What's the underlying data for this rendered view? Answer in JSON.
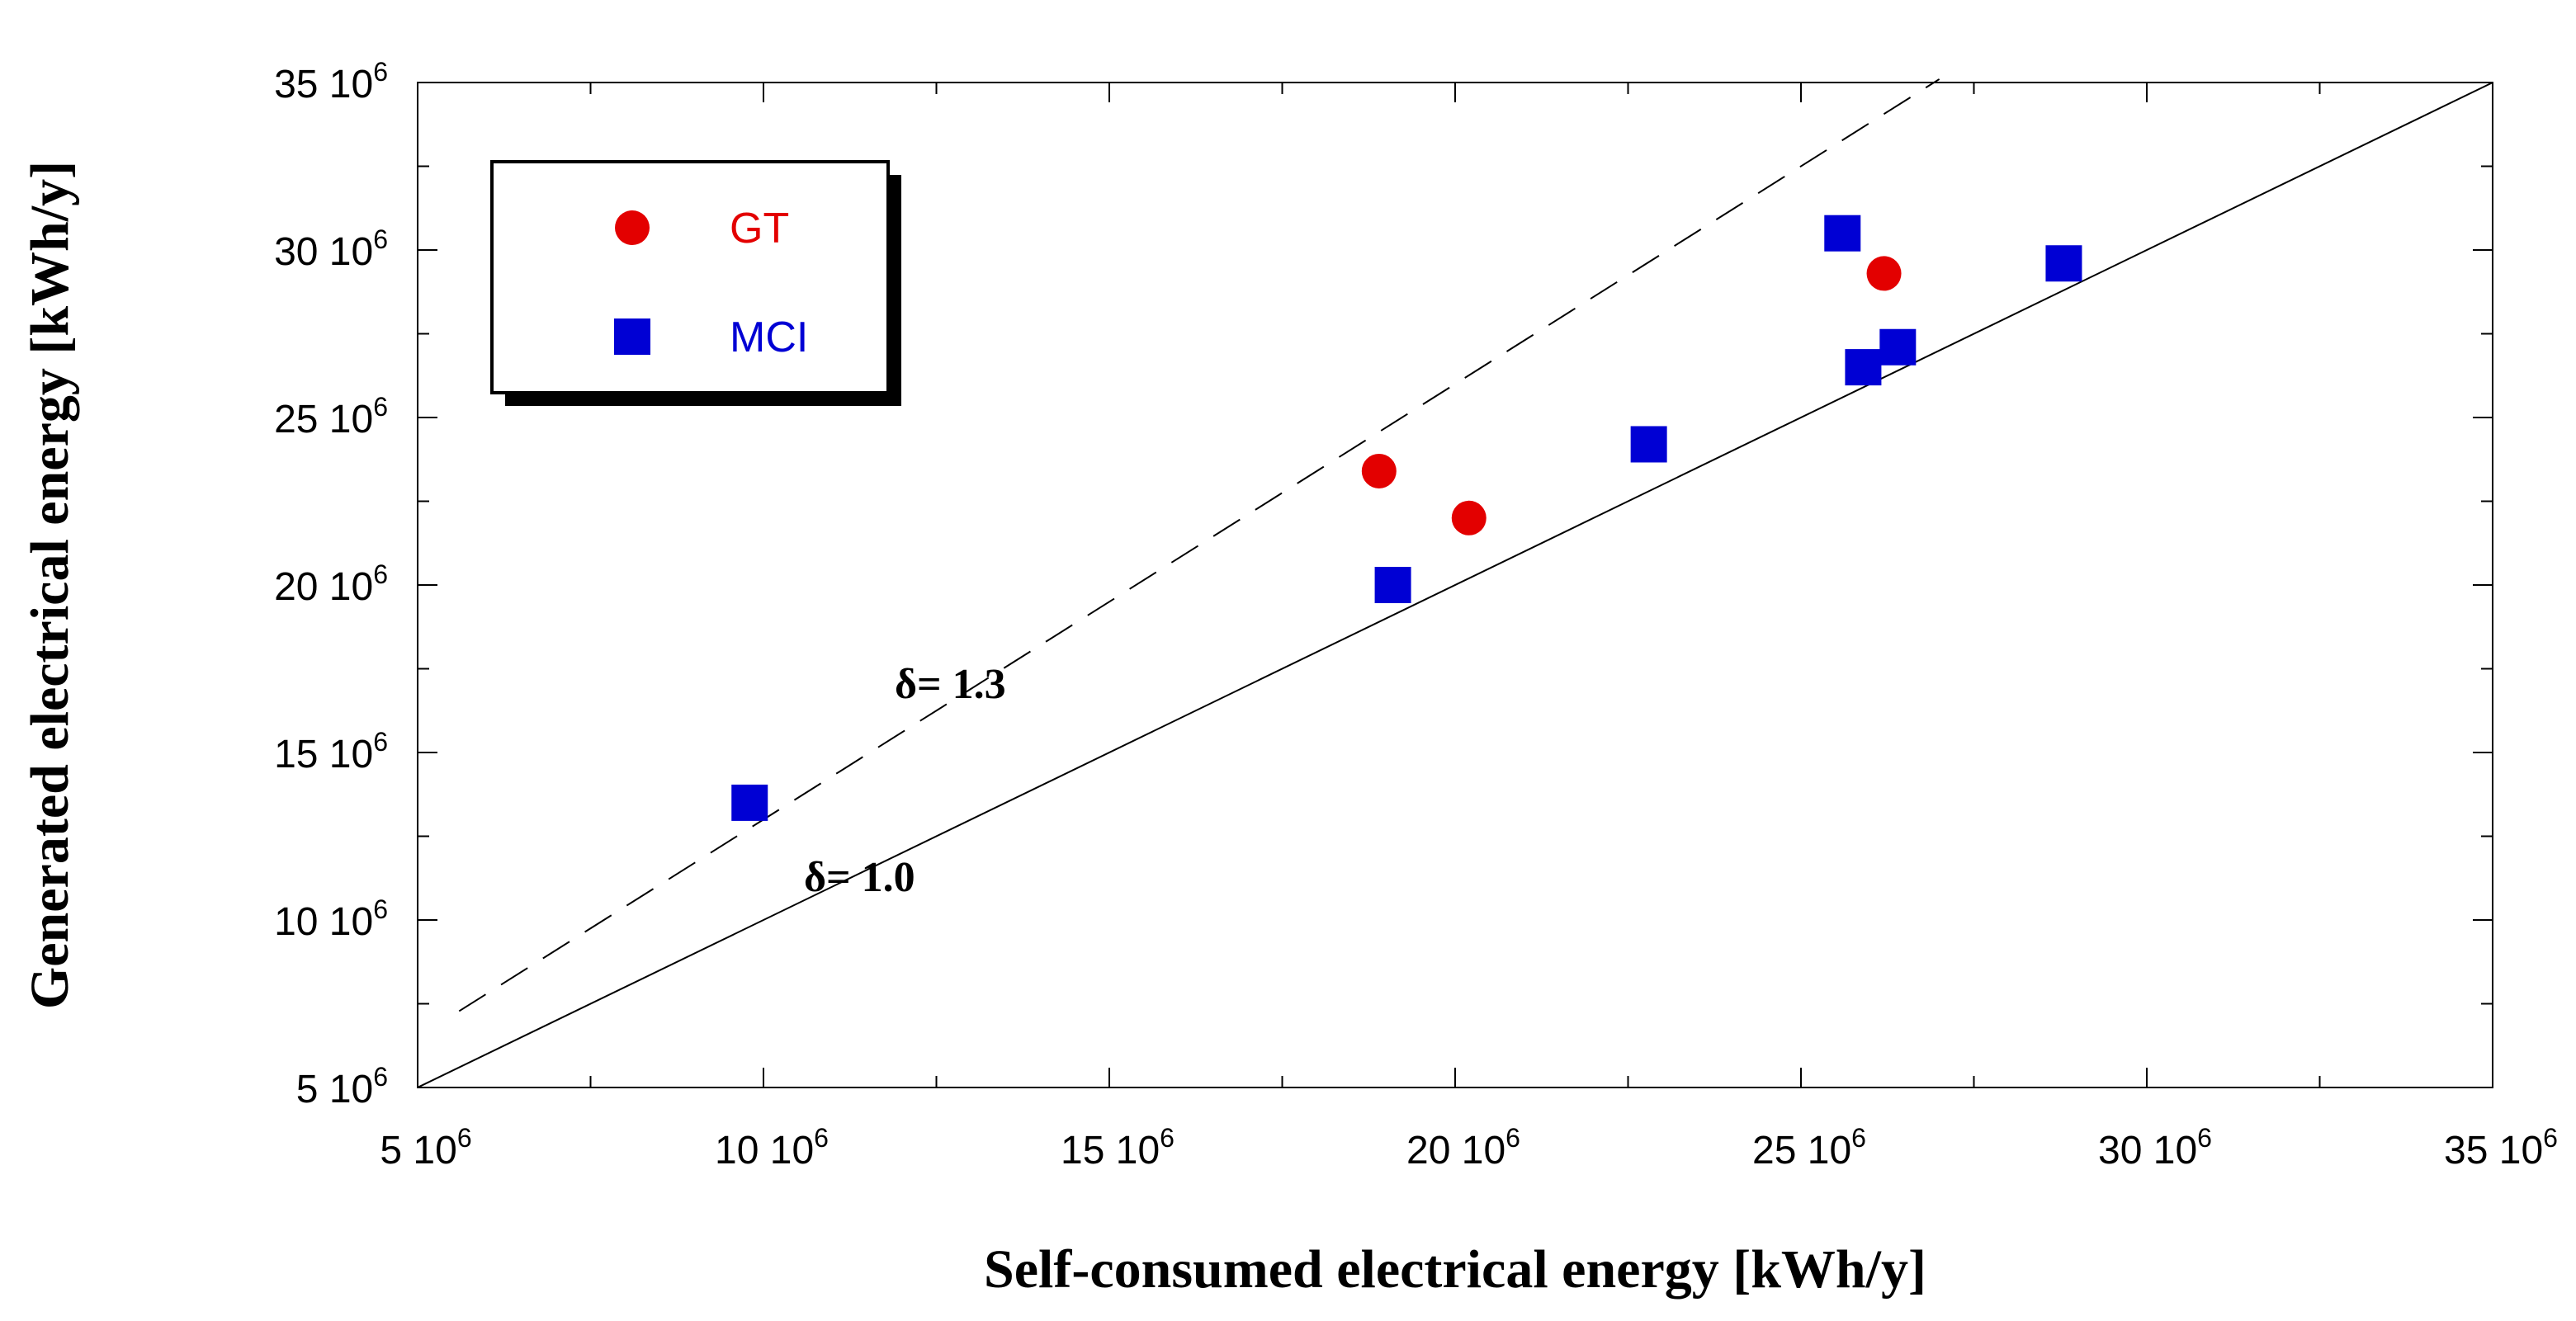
{
  "chart_data": {
    "type": "scatter",
    "xlabel": "Self-consumed electrical energy [kWh/y]",
    "ylabel": "Generated electrical energy [kWh/y]",
    "xlim": [
      5000000,
      35000000
    ],
    "ylim": [
      5000000,
      35000000
    ],
    "x_ticks": [
      {
        "value": 5000000,
        "mant": "5 10",
        "exp": "6"
      },
      {
        "value": 10000000,
        "mant": "10 10",
        "exp": "6"
      },
      {
        "value": 15000000,
        "mant": "15 10",
        "exp": "6"
      },
      {
        "value": 20000000,
        "mant": "20 10",
        "exp": "6"
      },
      {
        "value": 25000000,
        "mant": "25 10",
        "exp": "6"
      },
      {
        "value": 30000000,
        "mant": "30 10",
        "exp": "6"
      },
      {
        "value": 35000000,
        "mant": "35 10",
        "exp": "6"
      }
    ],
    "y_ticks": [
      {
        "value": 5000000,
        "mant": "5 10",
        "exp": "6"
      },
      {
        "value": 10000000,
        "mant": "10 10",
        "exp": "6"
      },
      {
        "value": 15000000,
        "mant": "15 10",
        "exp": "6"
      },
      {
        "value": 20000000,
        "mant": "20 10",
        "exp": "6"
      },
      {
        "value": 25000000,
        "mant": "25 10",
        "exp": "6"
      },
      {
        "value": 30000000,
        "mant": "30 10",
        "exp": "6"
      },
      {
        "value": 35000000,
        "mant": "35 10",
        "exp": "6"
      }
    ],
    "minor_tick_step": 2500000,
    "grid": false,
    "legend_position": "top-left",
    "series": [
      {
        "name": "GT",
        "marker": "circle",
        "color": "#e30000",
        "points": [
          {
            "x": 18900000,
            "y": 23400000
          },
          {
            "x": 20200000,
            "y": 22000000
          },
          {
            "x": 26200000,
            "y": 29300000
          }
        ]
      },
      {
        "name": "MCI",
        "marker": "square",
        "color": "#0000d4",
        "points": [
          {
            "x": 9800000,
            "y": 13500000
          },
          {
            "x": 19100000,
            "y": 20000000
          },
          {
            "x": 22800000,
            "y": 24200000
          },
          {
            "x": 25600000,
            "y": 30500000
          },
          {
            "x": 25900000,
            "y": 26500000
          },
          {
            "x": 26400000,
            "y": 27100000
          },
          {
            "x": 28800000,
            "y": 29600000
          }
        ]
      }
    ],
    "reference_lines": [
      {
        "label": "δ= 1.0",
        "slope": 1.0,
        "style": "solid",
        "x_start": 5000000,
        "x_end": 35000000
      },
      {
        "label": "δ= 1.3",
        "slope": 1.3,
        "style": "dashed",
        "x_start": 5600000,
        "x_end": 27000000
      }
    ]
  }
}
